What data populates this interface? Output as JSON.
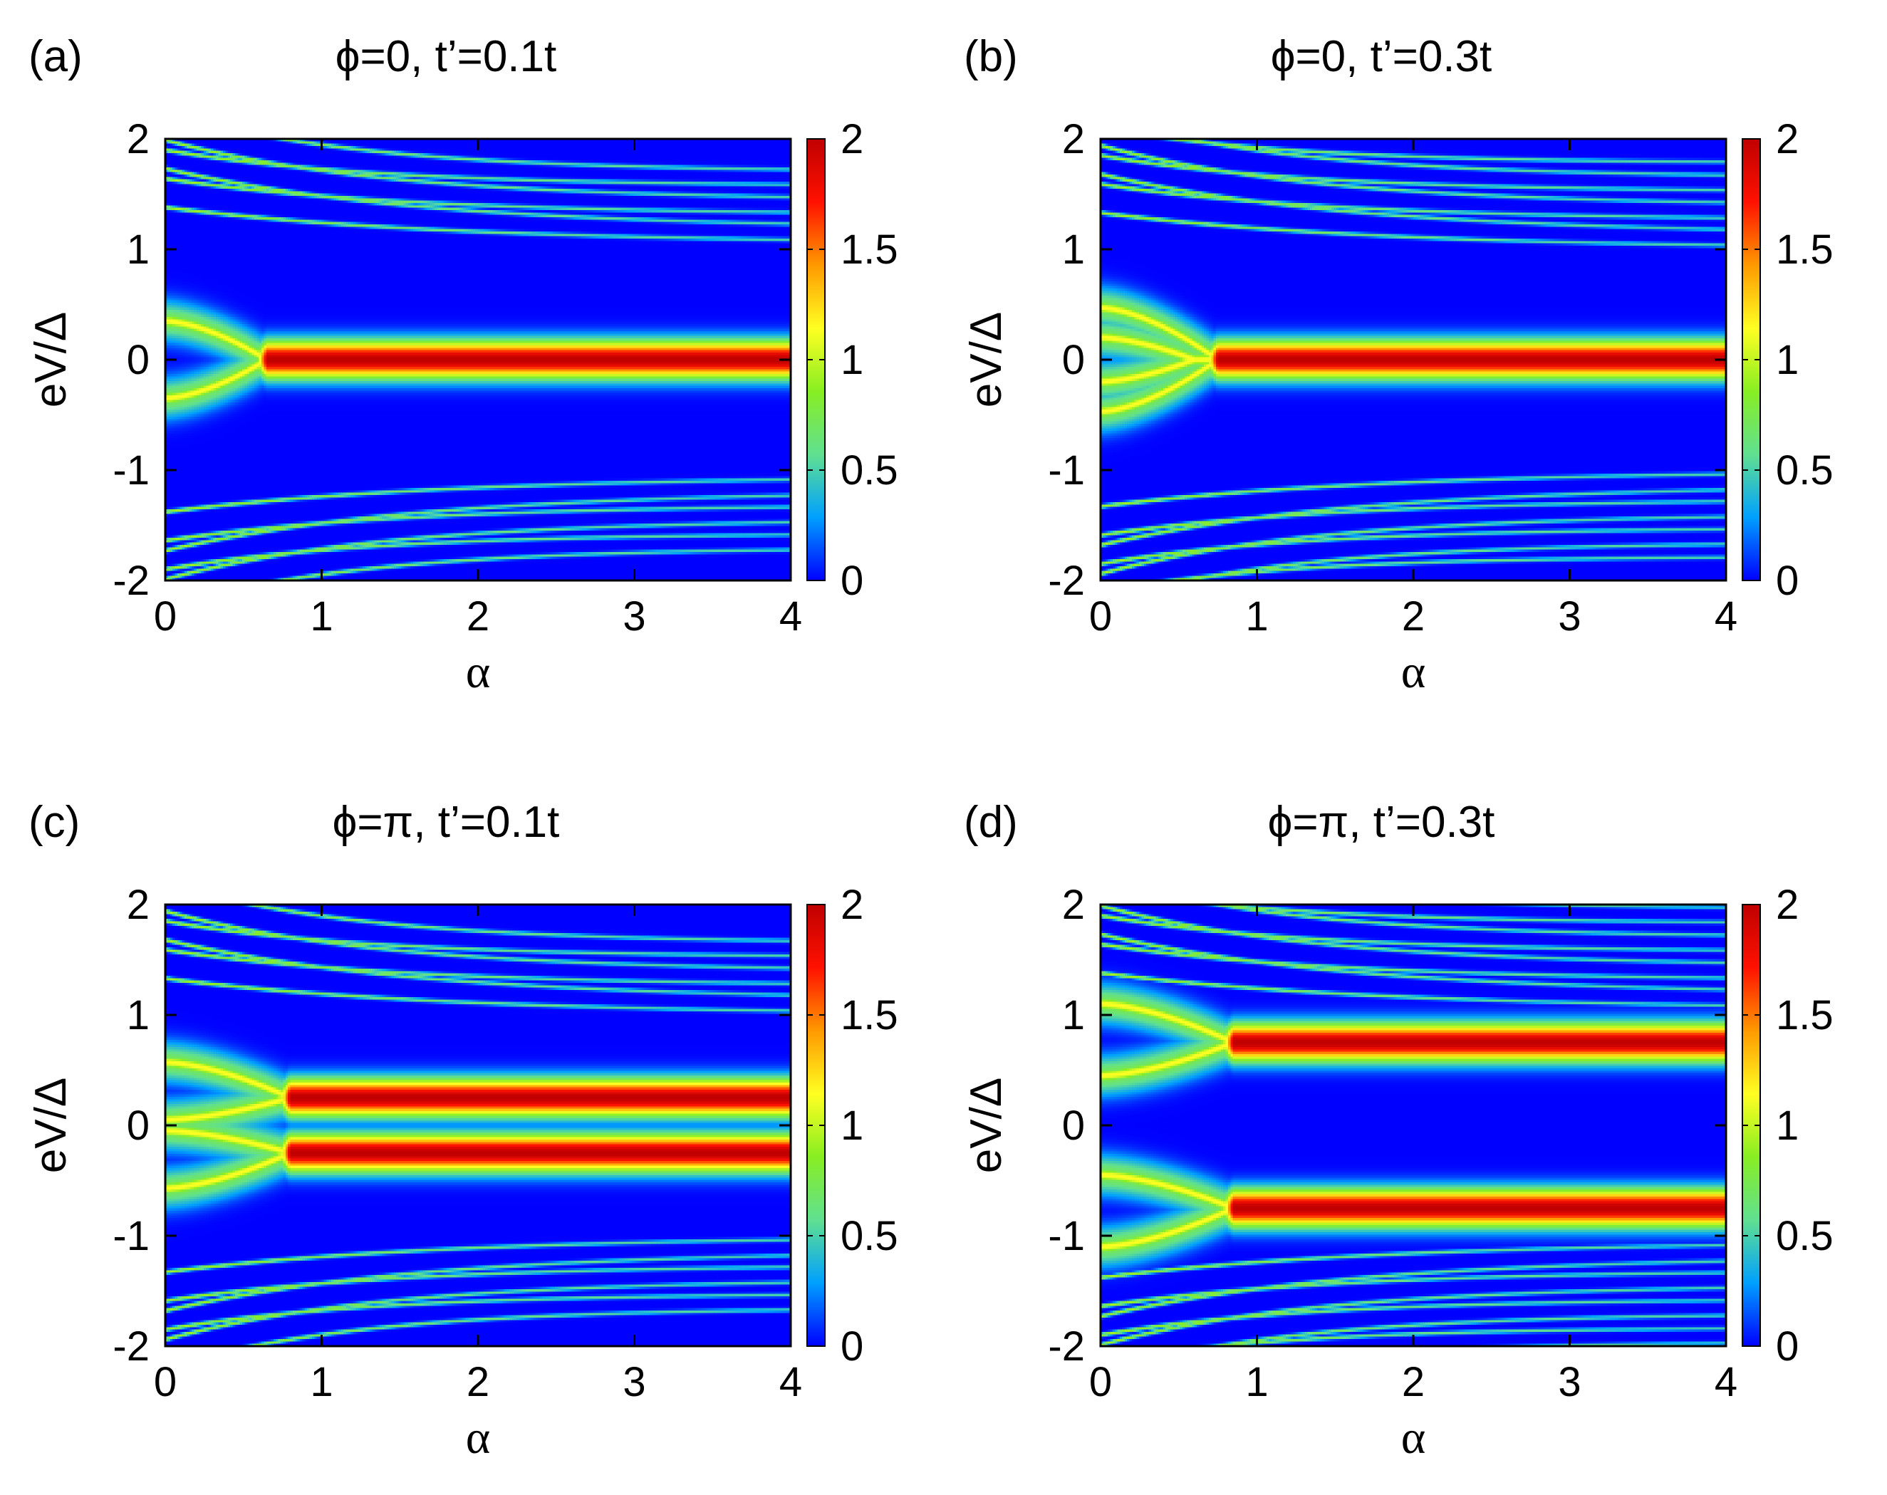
{
  "figure": {
    "colorbar_ticks": [
      "0",
      "0.5",
      "1",
      "1.5",
      "2"
    ],
    "colormap": [
      "#0000ff",
      "#00a0ff",
      "#60e090",
      "#88ee22",
      "#ffff22",
      "#ff9900",
      "#ff1100",
      "#c00000"
    ]
  },
  "chart_data": [
    {
      "type": "heatmap",
      "panel_label": "(a)",
      "title": "ϕ=0, t’=0.1t",
      "xlabel": "α",
      "ylabel": "eV/Δ",
      "xlim": [
        0,
        4
      ],
      "ylim": [
        -2,
        2
      ],
      "xticks": [
        "0",
        "1",
        "2",
        "3",
        "4"
      ],
      "yticks": [
        "-2",
        "-1",
        "0",
        "1",
        "2"
      ],
      "zlim": [
        0,
        2
      ],
      "merge_alpha": 0.65,
      "branches": [
        {
          "start": 0.35,
          "end": 0.0,
          "merge": 0.65
        },
        {
          "start": -0.35,
          "end": 0.0,
          "merge": 0.65
        }
      ],
      "plateaus": [
        {
          "energy": 0.0,
          "peak": 2.0
        }
      ],
      "continuum": {
        "gap": 1.05,
        "bands": 6
      }
    },
    {
      "type": "heatmap",
      "panel_label": "(b)",
      "title": "ϕ=0, t’=0.3t",
      "xlabel": "α",
      "ylabel": "eV/Δ",
      "xlim": [
        0,
        4
      ],
      "ylim": [
        -2,
        2
      ],
      "xticks": [
        "0",
        "1",
        "2",
        "3",
        "4"
      ],
      "yticks": [
        "-2",
        "-1",
        "0",
        "1",
        "2"
      ],
      "zlim": [
        0,
        2
      ],
      "merge_alpha": 0.75,
      "branches": [
        {
          "start": 0.47,
          "end": 0.0,
          "merge": 0.75
        },
        {
          "start": -0.47,
          "end": 0.0,
          "merge": 0.75
        },
        {
          "start": 0.2,
          "end": 0.0,
          "merge": 0.6
        },
        {
          "start": -0.2,
          "end": 0.0,
          "merge": 0.6
        }
      ],
      "plateaus": [
        {
          "energy": 0.0,
          "peak": 2.0
        }
      ],
      "continuum": {
        "gap": 1.0,
        "bands": 7
      }
    },
    {
      "type": "heatmap",
      "panel_label": "(c)",
      "title": "ϕ=π, t’=0.1t",
      "xlabel": "α",
      "ylabel": "eV/Δ",
      "xlim": [
        0,
        4
      ],
      "ylim": [
        -2,
        2
      ],
      "xticks": [
        "0",
        "1",
        "2",
        "3",
        "4"
      ],
      "yticks": [
        "-2",
        "-1",
        "0",
        "1",
        "2"
      ],
      "zlim": [
        0,
        2
      ],
      "merge_alpha": 0.8,
      "branches": [
        {
          "start": 0.57,
          "end": 0.25,
          "merge": 0.8
        },
        {
          "start": 0.05,
          "end": 0.25,
          "merge": 0.8
        },
        {
          "start": -0.57,
          "end": -0.25,
          "merge": 0.8
        },
        {
          "start": -0.05,
          "end": -0.25,
          "merge": 0.8
        }
      ],
      "plateaus": [
        {
          "energy": 0.25,
          "peak": 2.0
        },
        {
          "energy": -0.25,
          "peak": 2.0
        }
      ],
      "continuum": {
        "gap": 1.0,
        "bands": 6
      }
    },
    {
      "type": "heatmap",
      "panel_label": "(d)",
      "title": "ϕ=π, t’=0.3t",
      "xlabel": "α",
      "ylabel": "eV/Δ",
      "xlim": [
        0,
        4
      ],
      "ylim": [
        -2,
        2
      ],
      "xticks": [
        "0",
        "1",
        "2",
        "3",
        "4"
      ],
      "yticks": [
        "-2",
        "-1",
        "0",
        "1",
        "2"
      ],
      "zlim": [
        0,
        2
      ],
      "merge_alpha": 0.85,
      "branches": [
        {
          "start": 1.1,
          "end": 0.75,
          "merge": 0.85
        },
        {
          "start": 0.45,
          "end": 0.75,
          "merge": 0.85
        },
        {
          "start": -1.1,
          "end": -0.75,
          "merge": 0.85
        },
        {
          "start": -0.45,
          "end": -0.75,
          "merge": 0.85
        }
      ],
      "plateaus": [
        {
          "energy": 0.75,
          "peak": 2.0
        },
        {
          "energy": -0.75,
          "peak": 2.0
        }
      ],
      "continuum": {
        "gap": 1.05,
        "bands": 9
      }
    }
  ]
}
